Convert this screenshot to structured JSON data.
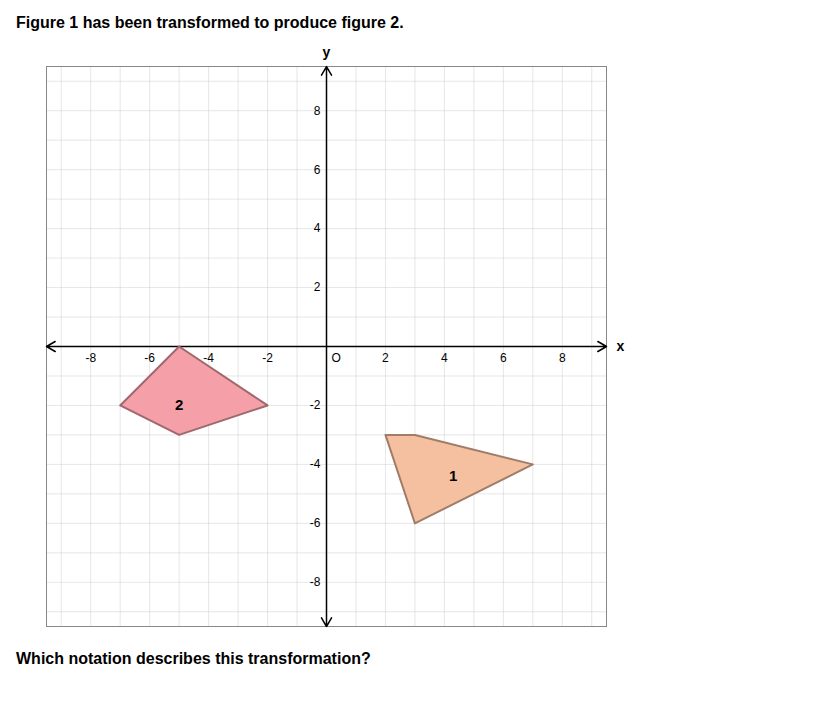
{
  "chart_data": {
    "type": "polygon",
    "title": "Figure 1 has been transformed to produce figure 2.",
    "subtitle": "Which notation describes this transformation?",
    "xlabel": "x",
    "ylabel": "y",
    "series": [
      {
        "color": "#f5a0a8",
        "x": [
          -5,
          -7,
          -5,
          -2
        ],
        "y": [
          0,
          -2,
          -3,
          -2
        ]
      },
      {
        "color": "#f5c0a0",
        "x": [
          2,
          3,
          7,
          3
        ],
        "y": [
          -3,
          -6,
          -4,
          -3
        ]
      }
    ],
    "annotations": [
      {
        "text": "2",
        "x": -5.0,
        "y": -2.0
      },
      {
        "text": "1",
        "x": 4.3,
        "y": -4.4
      },
      {
        "text": "O",
        "x": 0,
        "y": 0
      }
    ],
    "xlim": [
      -9.5,
      9.5
    ],
    "ylim": [
      -9.5,
      9.5
    ],
    "xticks": [
      -8,
      -6,
      -4,
      -2,
      2,
      4,
      6,
      8
    ],
    "yticks": [
      -8,
      -6,
      -4,
      -2,
      2,
      4,
      6,
      8
    ],
    "grid": true
  }
}
